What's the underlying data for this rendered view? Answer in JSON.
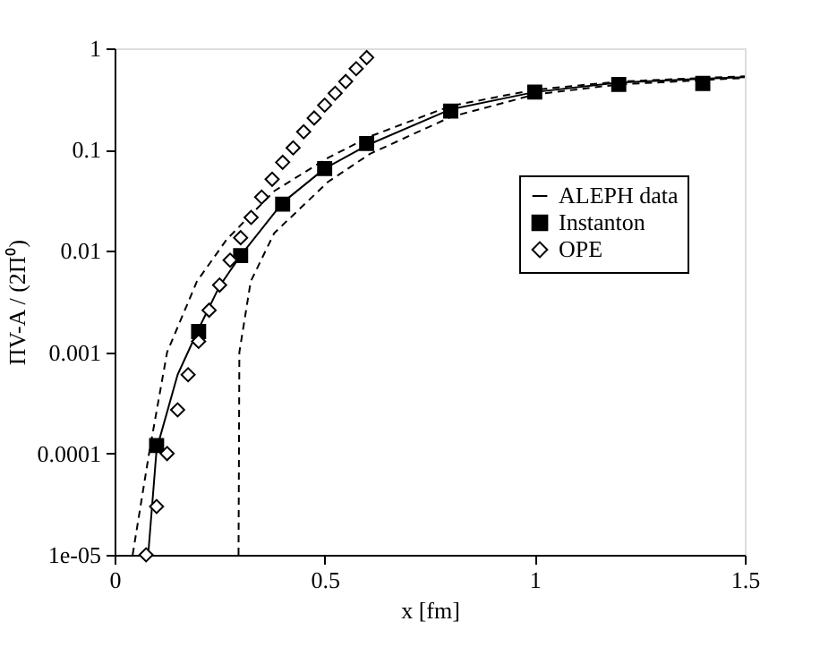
{
  "chart_data": {
    "type": "line",
    "xlabel": "x [fm]",
    "ylabel": "ΠV-A / (2Π⁰)",
    "xlim": [
      0,
      1.5
    ],
    "xticks": [
      0,
      0.5,
      1,
      1.5
    ],
    "ylim": [
      1e-05,
      1
    ],
    "yticks": [
      {
        "value": 1e-05,
        "label": "1e-05"
      },
      {
        "value": 0.0001,
        "label": "0.0001"
      },
      {
        "value": 0.001,
        "label": "0.001"
      },
      {
        "value": 0.01,
        "label": "0.01"
      },
      {
        "value": 0.1,
        "label": "0.1"
      },
      {
        "value": 1,
        "label": "1"
      }
    ],
    "log": "y",
    "grid": false,
    "legend": "right",
    "series": [
      {
        "name": "ALEPH data",
        "marker": "none",
        "line_style": "solid",
        "color": "#000000",
        "x": [
          0.08,
          0.1,
          0.15,
          0.2,
          0.25,
          0.3,
          0.4,
          0.5,
          0.6,
          0.8,
          1.0,
          1.2,
          1.4,
          1.5
        ],
        "values": [
          1e-05,
          0.00011,
          0.0006,
          0.0017,
          0.0045,
          0.009,
          0.03,
          0.065,
          0.11,
          0.25,
          0.37,
          0.46,
          0.5,
          0.52
        ]
      },
      {
        "marker": "none",
        "line_style": "dashed",
        "color": "#000000",
        "x": [
          0.043,
          0.082,
          0.125,
          0.196,
          0.267,
          0.38,
          0.508,
          0.608,
          0.8,
          1.0,
          1.2,
          1.5
        ],
        "values": [
          1e-05,
          0.0001,
          0.001,
          0.005,
          0.013,
          0.039,
          0.083,
          0.135,
          0.27,
          0.39,
          0.47,
          0.53
        ]
      },
      {
        "marker": "none",
        "line_style": "dashed",
        "color": "#000000",
        "x": [
          0.295,
          0.297,
          0.324,
          0.38,
          0.508,
          0.608,
          0.8,
          1.0,
          1.2,
          1.5
        ],
        "values": [
          1e-05,
          0.001,
          0.005,
          0.015,
          0.048,
          0.091,
          0.21,
          0.35,
          0.44,
          0.51
        ]
      },
      {
        "name": "Instanton",
        "type": "scatter",
        "marker": "square",
        "color": "#000000",
        "x": [
          0.1,
          0.2,
          0.3,
          0.4,
          0.5,
          0.6,
          0.8,
          1.0,
          1.2,
          1.4
        ],
        "values": [
          0.00012,
          0.0016,
          0.009,
          0.029,
          0.065,
          0.115,
          0.24,
          0.37,
          0.44,
          0.45
        ]
      },
      {
        "name": "OPE",
        "type": "scatter",
        "marker": "diamond",
        "color": "#000000",
        "x": [
          0.075,
          0.1,
          0.125,
          0.15,
          0.175,
          0.2,
          0.225,
          0.25,
          0.275,
          0.3,
          0.325,
          0.35,
          0.375,
          0.4,
          0.425,
          0.45,
          0.475,
          0.5,
          0.525,
          0.55,
          0.575,
          0.6
        ],
        "values": [
          1e-05,
          3e-05,
          0.0001,
          0.00027,
          0.0006,
          0.00128,
          0.0026,
          0.0046,
          0.0081,
          0.0135,
          0.0214,
          0.034,
          0.051,
          0.075,
          0.104,
          0.15,
          0.205,
          0.275,
          0.36,
          0.47,
          0.63,
          0.81
        ]
      }
    ]
  }
}
